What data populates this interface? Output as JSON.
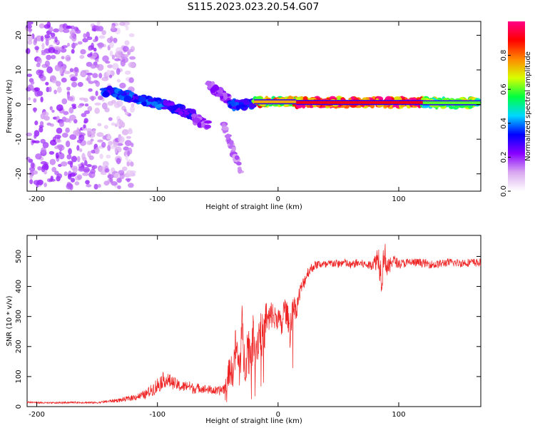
{
  "title": "S115.2023.023.20.54.G07",
  "chart_data": [
    {
      "type": "heatmap",
      "xlabel": "Height of straight line (km)",
      "ylabel": "Frequency (Hz)",
      "xlim": [
        -208,
        168
      ],
      "ylim": [
        -25,
        24
      ],
      "x_ticks": [
        -200,
        -100,
        0,
        100
      ],
      "y_ticks": [
        -20,
        -10,
        0,
        10,
        20
      ],
      "colorbar": {
        "label": "Normalized spectral amplitude",
        "ticks": [
          0.0,
          0.2,
          0.4,
          0.6,
          0.8
        ],
        "range": [
          0,
          1
        ],
        "colors": [
          "#ffffff",
          "#d9a8f0",
          "#8800ff",
          "#0000ff",
          "#00d8ff",
          "#00ff40",
          "#d8ff00",
          "#ff8800",
          "#ff0000",
          "#ff0088"
        ]
      },
      "features": [
        {
          "name": "noise",
          "x_range": [
            -208,
            -150
          ],
          "f_range": [
            -24,
            24
          ],
          "amplitude": 0.1
        },
        {
          "name": "noise",
          "x_range": [
            -150,
            -120
          ],
          "f_range": [
            -24,
            24
          ],
          "amplitude": 0.05
        },
        {
          "name": "signal",
          "x_range": [
            -145,
            -95
          ],
          "f_range": [
            4,
            0
          ],
          "amplitude": 0.35
        },
        {
          "name": "signal",
          "x_range": [
            -95,
            -70
          ],
          "f_range": [
            0,
            -3
          ],
          "amplitude": 0.3
        },
        {
          "name": "signal",
          "x_range": [
            -70,
            -58
          ],
          "f_range": [
            -4,
            -6
          ],
          "amplitude": 0.2
        },
        {
          "name": "signal",
          "x_range": [
            -58,
            -40
          ],
          "f_range": [
            6,
            1
          ],
          "amplitude": 0.2
        },
        {
          "name": "signal",
          "x_range": [
            -45,
            -30
          ],
          "f_range": [
            -6,
            -20
          ],
          "amplitude": 0.15
        },
        {
          "name": "signal",
          "x_range": [
            -40,
            -20
          ],
          "f_range": [
            0,
            0
          ],
          "amplitude": 0.35
        },
        {
          "name": "signal",
          "x_range": [
            -20,
            15
          ],
          "f_range": [
            0.8,
            0.8
          ],
          "amplitude": 0.75
        },
        {
          "name": "signal",
          "x_range": [
            15,
            120
          ],
          "f_range": [
            0.6,
            0.6
          ],
          "amplitude": 0.9
        },
        {
          "name": "signal",
          "x_range": [
            120,
            168
          ],
          "f_range": [
            0.5,
            0.5
          ],
          "amplitude": 0.6
        }
      ]
    },
    {
      "type": "line",
      "xlabel": "Height of straight line (km)",
      "ylabel": "SNR (10 * v/v)",
      "xlim": [
        -208,
        168
      ],
      "ylim": [
        0,
        570
      ],
      "x_ticks": [
        -200,
        -100,
        0,
        100
      ],
      "y_ticks": [
        0,
        100,
        200,
        300,
        400,
        500
      ],
      "color": "#ee2222",
      "series": [
        {
          "x": [
            -208,
            -190,
            -170,
            -150,
            -140,
            -130,
            -120,
            -110,
            -105,
            -100,
            -95,
            -90,
            -85,
            -80,
            -75,
            -70,
            -65,
            -60,
            -55,
            -50,
            -45,
            -42,
            -40,
            -38,
            -35,
            -32,
            -30,
            -28,
            -25,
            -22,
            -20,
            -18,
            -15,
            -12,
            -10,
            -8,
            -5,
            -3,
            0,
            3,
            5,
            8,
            10,
            12,
            15,
            18,
            20,
            22,
            25,
            28,
            30,
            35,
            40,
            45,
            50,
            55,
            60,
            65,
            70,
            75,
            80,
            83,
            86,
            88,
            90,
            92,
            95,
            100,
            110,
            120,
            130,
            140,
            150,
            160,
            168
          ],
          "values": [
            15,
            12,
            14,
            13,
            18,
            22,
            30,
            40,
            55,
            70,
            90,
            85,
            75,
            65,
            70,
            60,
            62,
            58,
            55,
            50,
            60,
            80,
            140,
            100,
            200,
            120,
            260,
            150,
            200,
            180,
            250,
            200,
            260,
            220,
            300,
            280,
            310,
            290,
            300,
            260,
            330,
            300,
            250,
            350,
            320,
            380,
            400,
            420,
            450,
            460,
            470,
            475,
            470,
            478,
            475,
            480,
            470,
            478,
            475,
            470,
            480,
            500,
            430,
            520,
            470,
            460,
            490,
            475,
            480,
            478,
            472,
            480,
            478,
            480,
            478
          ],
          "noise": [
            3,
            3,
            3,
            3,
            5,
            7,
            10,
            15,
            20,
            30,
            25,
            25,
            20,
            18,
            18,
            18,
            15,
            15,
            15,
            15,
            20,
            30,
            60,
            50,
            80,
            70,
            90,
            80,
            90,
            80,
            90,
            80,
            80,
            70,
            70,
            60,
            50,
            45,
            40,
            40,
            45,
            40,
            60,
            40,
            35,
            30,
            25,
            22,
            20,
            18,
            15,
            15,
            15,
            15,
            14,
            14,
            14,
            14,
            14,
            14,
            25,
            50,
            60,
            50,
            40,
            30,
            20,
            15,
            15,
            14,
            14,
            14,
            14,
            14,
            14
          ]
        }
      ]
    }
  ]
}
